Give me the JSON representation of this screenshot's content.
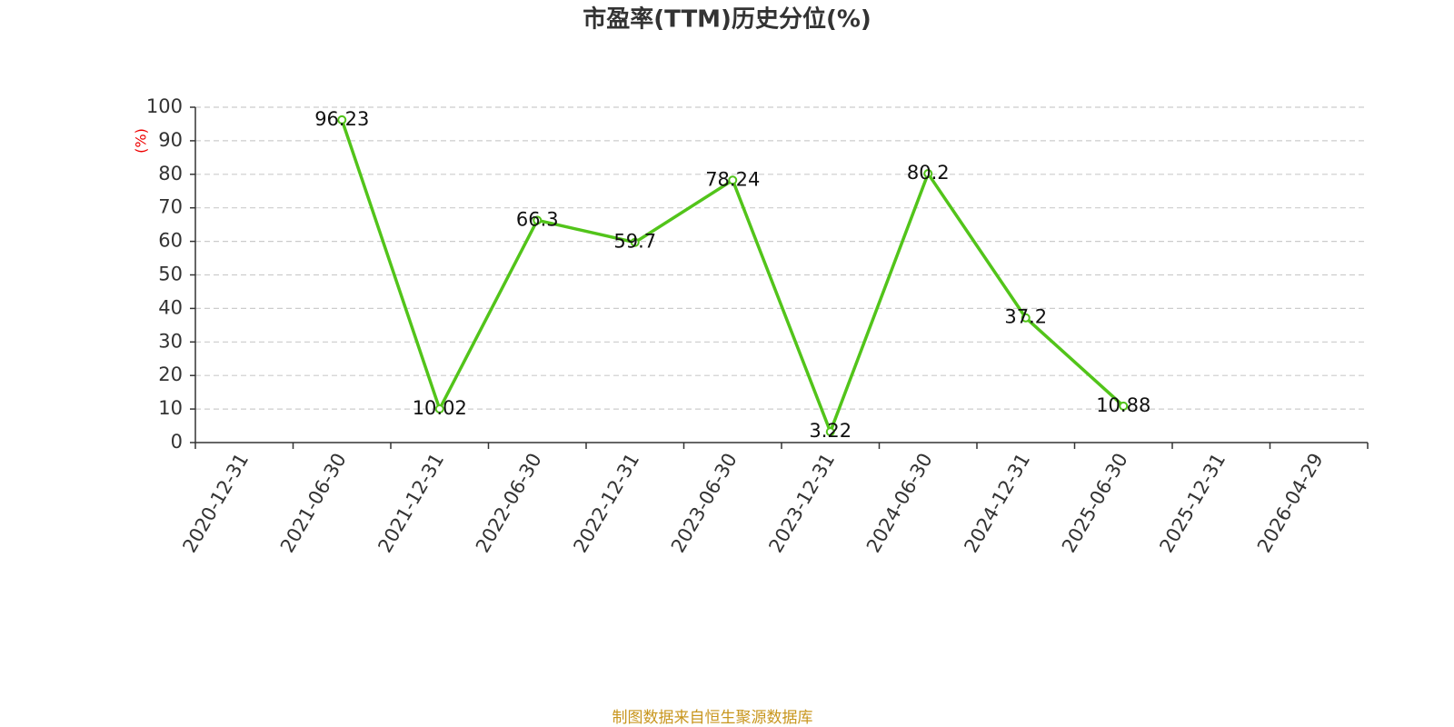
{
  "chart_data": {
    "type": "line",
    "title": "市盈率(TTM)历史分位(%)",
    "y_label": "(%)",
    "source": "制图数据来自恒生聚源数据库",
    "categories": [
      "2020-12-31",
      "2021-06-30",
      "2021-12-31",
      "2022-06-30",
      "2022-12-31",
      "2023-06-30",
      "2023-12-31",
      "2024-06-30",
      "2024-12-31",
      "2025-06-30",
      "2025-12-31",
      "2026-04-29"
    ],
    "series": [
      {
        "color": "#52c41a",
        "values": [
          null,
          96.23,
          10.02,
          66.3,
          59.7,
          78.24,
          3.22,
          80.2,
          37.2,
          10.88,
          null,
          null
        ]
      }
    ],
    "ylim": [
      0,
      100
    ],
    "yticks": [
      0,
      10,
      20,
      30,
      40,
      50,
      60,
      70,
      80,
      90,
      100
    ],
    "grid": true
  }
}
